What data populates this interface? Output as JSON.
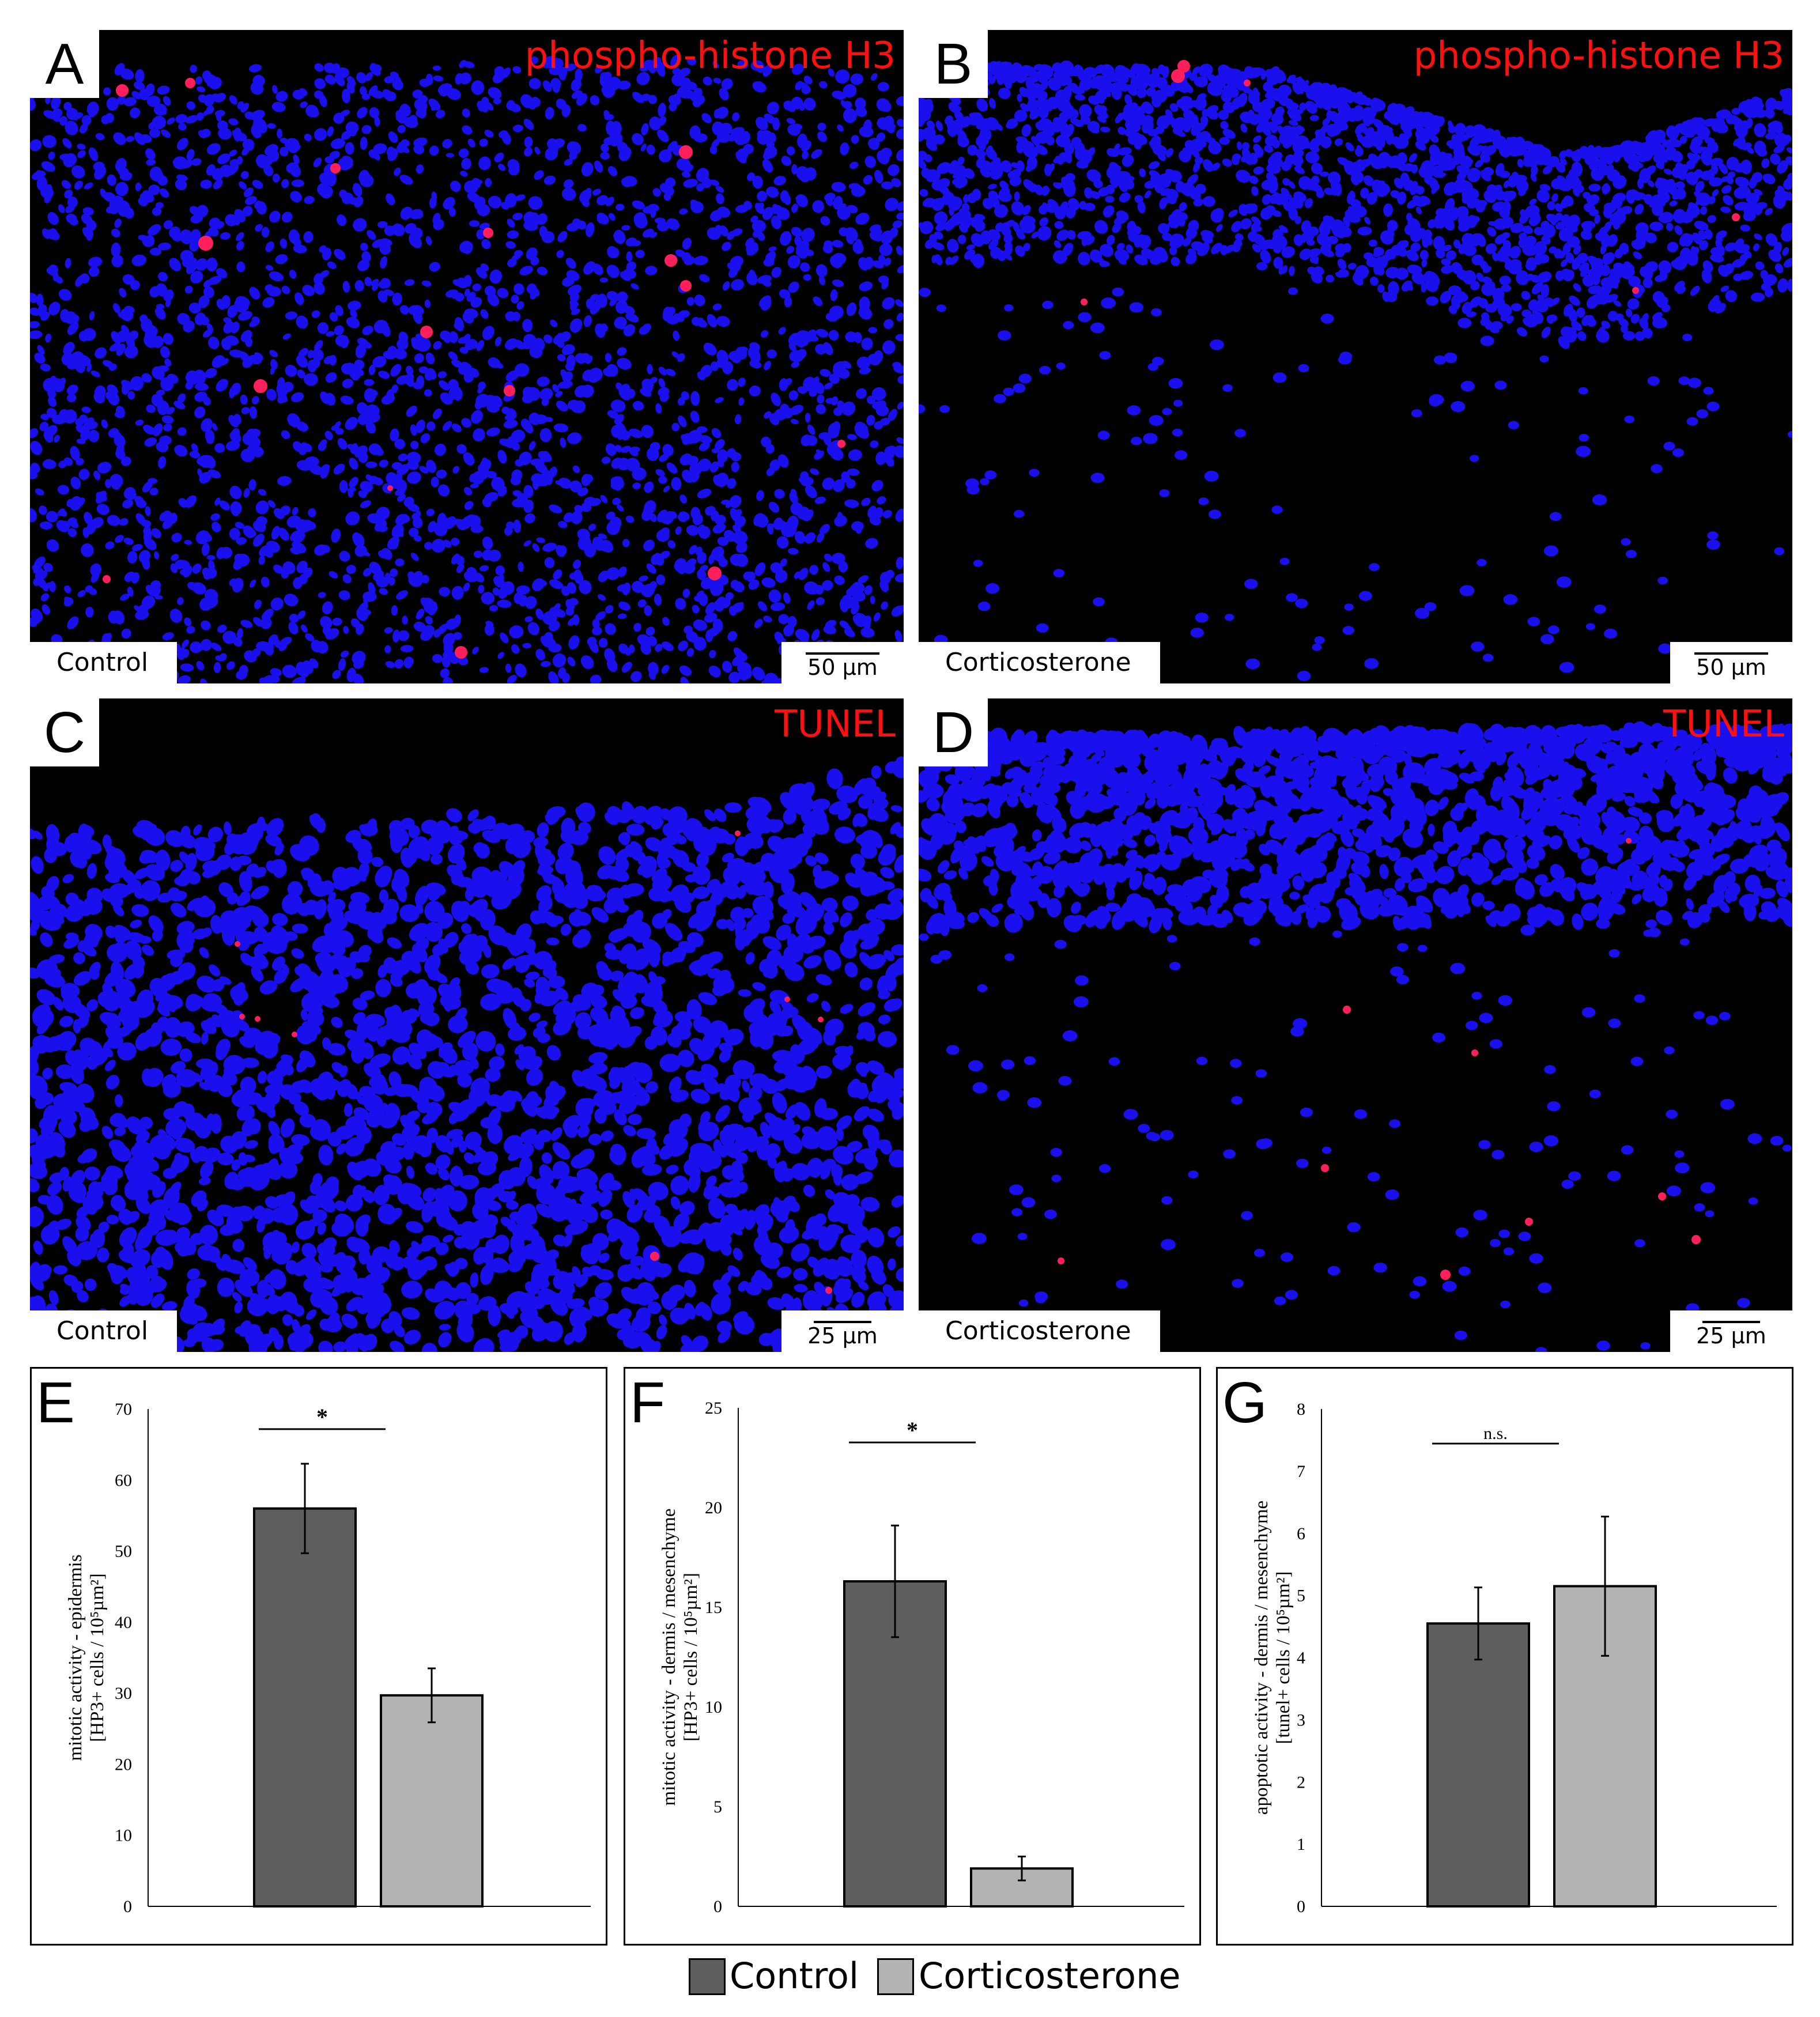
{
  "colors": {
    "control": "#5e5e5e",
    "corticosterone": "#b3b3b3",
    "nuclei": "#1a10ee",
    "marker": "#ff1f5a"
  },
  "micrographs": [
    {
      "letter": "A",
      "stain": "phospho-histone H3",
      "condition": "Control",
      "scale": "50 µm"
    },
    {
      "letter": "B",
      "stain": "phospho-histone H3",
      "condition": "Corticosterone",
      "scale": "50 µm"
    },
    {
      "letter": "C",
      "stain": "TUNEL",
      "condition": "Control",
      "scale": "25 µm"
    },
    {
      "letter": "D",
      "stain": "TUNEL",
      "condition": "Corticosterone",
      "scale": "25 µm"
    }
  ],
  "chart_data": [
    {
      "type": "bar",
      "letter": "E",
      "categories": [
        "Control",
        "Corticosterone"
      ],
      "values": [
        56,
        29.7
      ],
      "errors": [
        6.3,
        3.8
      ],
      "ylabel_line1": "mitotic activity -  epidermis",
      "ylabel_line2": "[HP3+ cells / 10⁵µm²]",
      "yticks": [
        "0",
        "10",
        "20",
        "30",
        "40",
        "50",
        "60",
        "70"
      ],
      "ylim": [
        0,
        70
      ],
      "significance": "*"
    },
    {
      "type": "bar",
      "letter": "F",
      "categories": [
        "Control",
        "Corticosterone"
      ],
      "values": [
        16.3,
        1.9
      ],
      "errors": [
        2.8,
        0.6
      ],
      "ylabel_line1": "mitotic activity - dermis / mesenchyme",
      "ylabel_line2": "[HP3+ cells / 10⁵µm²]",
      "yticks": [
        "0",
        "5",
        "10",
        "15",
        "20",
        "25"
      ],
      "ylim": [
        0,
        25
      ],
      "significance": "*"
    },
    {
      "type": "bar",
      "letter": "G",
      "categories": [
        "Control",
        "Corticosterone"
      ],
      "values": [
        4.55,
        5.15
      ],
      "errors": [
        0.58,
        1.12
      ],
      "ylabel_line1": "apoptotic activity - dermis / mesenchyme",
      "ylabel_line2": "[tunel+ cells / 10⁵µm²]",
      "yticks": [
        "0",
        "1",
        "2",
        "3",
        "4",
        "5",
        "6",
        "7",
        "8"
      ],
      "ylim": [
        0,
        8
      ],
      "significance": "n.s."
    }
  ],
  "legend": {
    "control_label": "Control",
    "corticosterone_label": "Corticosterone"
  }
}
